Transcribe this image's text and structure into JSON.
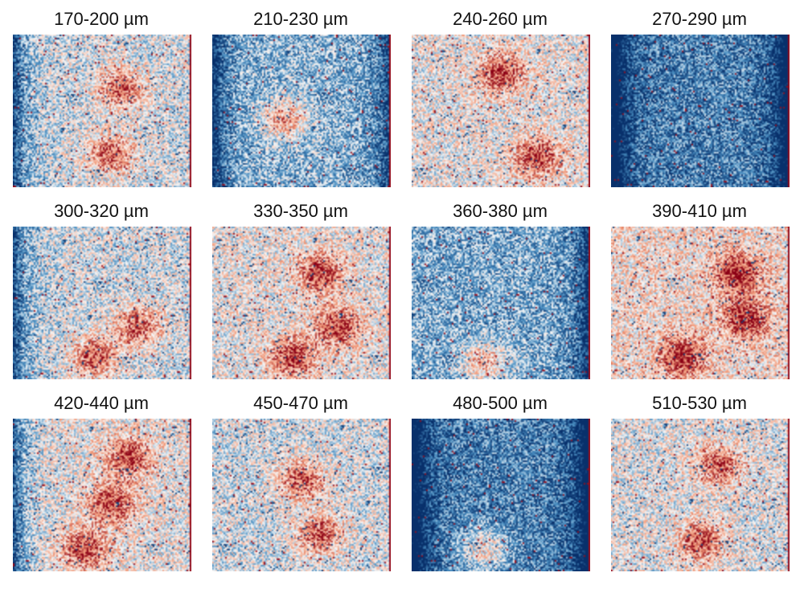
{
  "colormap": {
    "name": "diverging blue-white-red",
    "blue_dark": "#08306b",
    "blue_mid": "#4a8fc2",
    "white": "#f7f7f7",
    "red_mid": "#f29a79",
    "red_dark": "#8b0015"
  },
  "panels": [
    {
      "label": "170-200 µm",
      "pattern": "mixed",
      "hot_spots": [
        [
          0.55,
          0.78
        ],
        [
          0.6,
          0.35
        ]
      ],
      "edge": "left"
    },
    {
      "label": "210-230 µm",
      "pattern": "mostly-blue",
      "hot_spots": [
        [
          0.4,
          0.55
        ]
      ],
      "edge": "both"
    },
    {
      "label": "240-260 µm",
      "pattern": "mixed-red",
      "hot_spots": [
        [
          0.5,
          0.25
        ],
        [
          0.7,
          0.8
        ]
      ],
      "edge": "none"
    },
    {
      "label": "270-290 µm",
      "pattern": "blue",
      "hot_spots": [],
      "edge": "both-strong"
    },
    {
      "label": "300-320 µm",
      "pattern": "mixed",
      "hot_spots": [
        [
          0.45,
          0.85
        ],
        [
          0.7,
          0.65
        ]
      ],
      "edge": "left"
    },
    {
      "label": "330-350 µm",
      "pattern": "mixed-red",
      "hot_spots": [
        [
          0.45,
          0.85
        ],
        [
          0.7,
          0.65
        ],
        [
          0.6,
          0.3
        ]
      ],
      "edge": "none"
    },
    {
      "label": "360-380 µm",
      "pattern": "blue-hotspot",
      "hot_spots": [
        [
          0.4,
          0.88
        ]
      ],
      "edge": "right"
    },
    {
      "label": "390-410 µm",
      "pattern": "red",
      "hot_spots": [
        [
          0.7,
          0.3
        ],
        [
          0.75,
          0.6
        ],
        [
          0.4,
          0.85
        ]
      ],
      "edge": "none"
    },
    {
      "label": "420-440 µm",
      "pattern": "mixed-red",
      "hot_spots": [
        [
          0.65,
          0.25
        ],
        [
          0.55,
          0.55
        ],
        [
          0.4,
          0.85
        ]
      ],
      "edge": "left"
    },
    {
      "label": "450-470 µm",
      "pattern": "mixed",
      "hot_spots": [
        [
          0.5,
          0.4
        ],
        [
          0.6,
          0.75
        ]
      ],
      "edge": "none"
    },
    {
      "label": "480-500 µm",
      "pattern": "blue",
      "hot_spots": [
        [
          0.4,
          0.85
        ]
      ],
      "edge": "both-strong"
    },
    {
      "label": "510-530 µm",
      "pattern": "light-mixed",
      "hot_spots": [
        [
          0.5,
          0.8
        ],
        [
          0.6,
          0.3
        ]
      ],
      "edge": "none"
    }
  ]
}
